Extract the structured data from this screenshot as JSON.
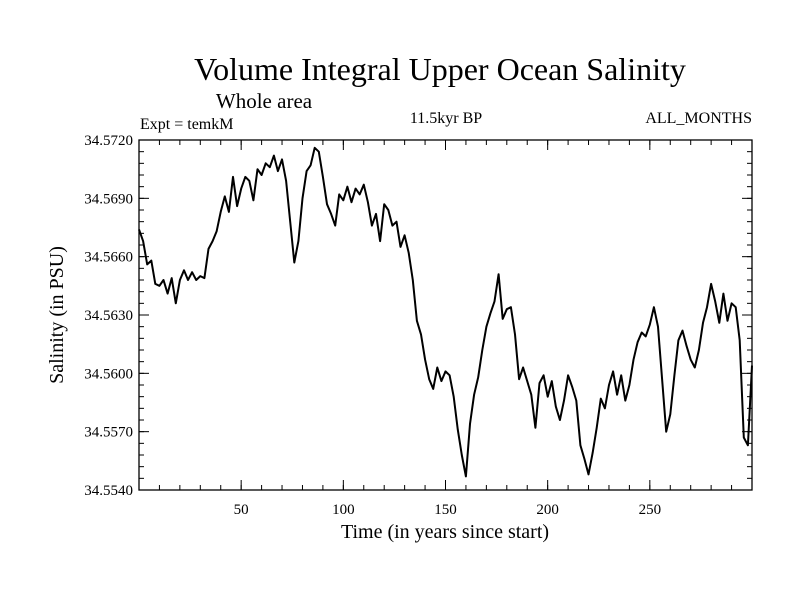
{
  "chart_data": {
    "type": "line",
    "title": "Volume Integral Upper Ocean Salinity",
    "subtitle": "Whole area",
    "annotations": {
      "left": "Expt = temkM",
      "center": "11.5kyr BP",
      "right": "ALL_MONTHS"
    },
    "xlabel": "Time (in years since start)",
    "ylabel": "Salinity (in PSU)",
    "xlim": [
      0,
      300
    ],
    "ylim": [
      34.554,
      34.572
    ],
    "xticks": [
      50,
      100,
      150,
      200,
      250
    ],
    "yticks": [
      34.554,
      34.557,
      34.56,
      34.563,
      34.566,
      34.569,
      34.572
    ],
    "ytick_labels": [
      "34.5540",
      "34.5570",
      "34.5600",
      "34.5630",
      "34.5660",
      "34.5690",
      "34.5720"
    ],
    "grid": false,
    "series": [
      {
        "name": "Salinity",
        "x": [
          0,
          2,
          4,
          6,
          8,
          10,
          12,
          14,
          16,
          18,
          20,
          22,
          24,
          26,
          28,
          30,
          32,
          34,
          36,
          38,
          40,
          42,
          44,
          46,
          48,
          50,
          52,
          54,
          56,
          58,
          60,
          62,
          64,
          66,
          68,
          70,
          72,
          74,
          76,
          78,
          80,
          82,
          84,
          86,
          88,
          90,
          92,
          94,
          96,
          98,
          100,
          102,
          104,
          106,
          108,
          110,
          112,
          114,
          116,
          118,
          120,
          122,
          124,
          126,
          128,
          130,
          132,
          134,
          136,
          138,
          140,
          142,
          144,
          146,
          148,
          150,
          152,
          154,
          156,
          158,
          160,
          162,
          164,
          166,
          168,
          170,
          172,
          174,
          176,
          178,
          180,
          182,
          184,
          186,
          188,
          190,
          192,
          194,
          196,
          198,
          200,
          202,
          204,
          206,
          208,
          210,
          212,
          214,
          216,
          218,
          220,
          222,
          224,
          226,
          228,
          230,
          232,
          234,
          236,
          238,
          240,
          242,
          244,
          246,
          248,
          250,
          252,
          254,
          256,
          258,
          260,
          262,
          264,
          266,
          268,
          270,
          272,
          274,
          276,
          278,
          280,
          282,
          284,
          286,
          288,
          290,
          292,
          294,
          296,
          298,
          300
        ],
        "values": [
          34.5674,
          34.5668,
          34.5656,
          34.5658,
          34.5646,
          34.5645,
          34.5648,
          34.5641,
          34.5649,
          34.5636,
          34.5648,
          34.5653,
          34.5648,
          34.5652,
          34.5648,
          34.565,
          34.5649,
          34.5664,
          34.5668,
          34.5673,
          34.5683,
          34.5691,
          34.5683,
          34.5701,
          34.5686,
          34.5695,
          34.5701,
          34.5699,
          34.5689,
          34.5705,
          34.5702,
          34.5708,
          34.5706,
          34.5712,
          34.5704,
          34.571,
          34.5699,
          34.5678,
          34.5657,
          34.5668,
          34.569,
          34.5704,
          34.5707,
          34.5716,
          34.5714,
          34.5701,
          34.5687,
          34.5682,
          34.5676,
          34.5692,
          34.5689,
          34.5696,
          34.5688,
          34.5695,
          34.5692,
          34.5697,
          34.5688,
          34.5676,
          34.5682,
          34.5668,
          34.5687,
          34.5684,
          34.5676,
          34.5678,
          34.5665,
          34.5671,
          34.5662,
          34.5648,
          34.5627,
          34.562,
          34.5607,
          34.5597,
          34.5592,
          34.5603,
          34.5596,
          34.5601,
          34.5599,
          34.5588,
          34.5571,
          34.5558,
          34.5547,
          34.5574,
          34.5589,
          34.5598,
          34.5612,
          34.5624,
          34.5631,
          34.5637,
          34.5651,
          34.5628,
          34.5633,
          34.5634,
          34.562,
          34.5597,
          34.5603,
          34.5596,
          34.5589,
          34.5572,
          34.5595,
          34.5599,
          34.5588,
          34.5596,
          34.5583,
          34.5576,
          34.5586,
          34.5599,
          34.5593,
          34.5586,
          34.5563,
          34.5556,
          34.5548,
          34.5559,
          34.5572,
          34.5587,
          34.5582,
          34.5594,
          34.5601,
          34.5589,
          34.5599,
          34.5586,
          34.5594,
          34.5607,
          34.5616,
          34.5621,
          34.5619,
          34.5625,
          34.5634,
          34.5624,
          34.5597,
          34.557,
          34.5579,
          34.5599,
          34.5617,
          34.5622,
          34.5614,
          34.5607,
          34.5603,
          34.5612,
          34.5626,
          34.5634,
          34.5646,
          34.5637,
          34.5626,
          34.5641,
          34.5627,
          34.5636,
          34.5634,
          34.5617,
          34.5567,
          34.5563,
          34.5604
        ]
      }
    ]
  }
}
